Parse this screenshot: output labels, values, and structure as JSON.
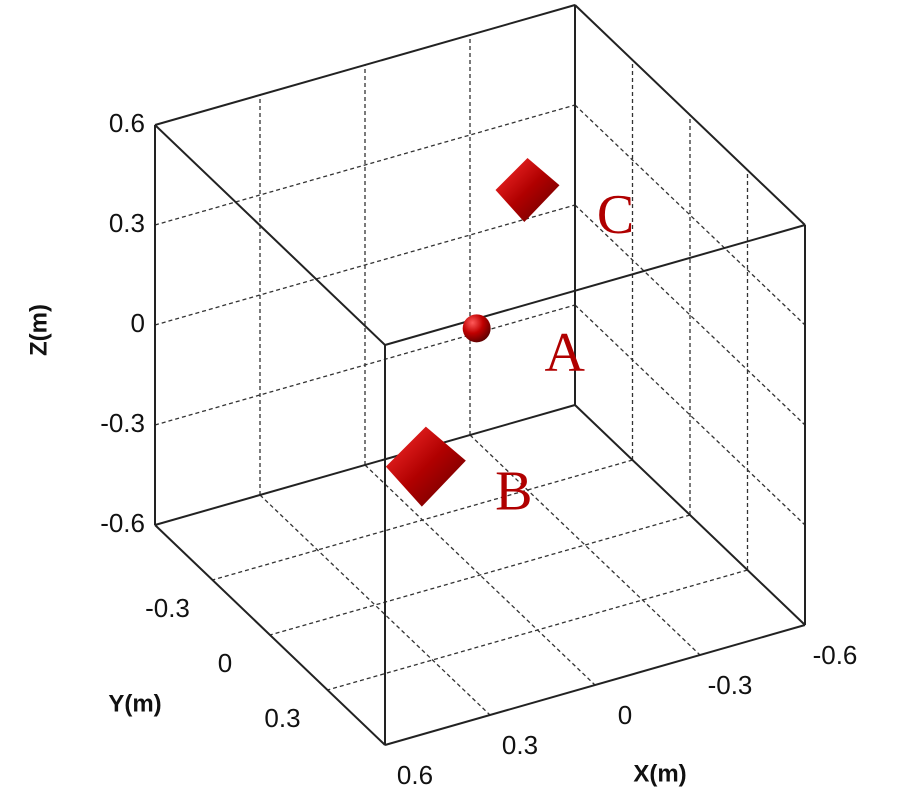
{
  "chart_data": {
    "type": "scatter3d",
    "xlabel": "X(m)",
    "ylabel": "Y(m)",
    "zlabel": "Z(m)",
    "xlim": [
      -0.6,
      0.6
    ],
    "ylim": [
      -0.6,
      0.6
    ],
    "zlim": [
      -0.6,
      0.6
    ],
    "xticks": [
      -0.6,
      -0.3,
      0,
      0.3,
      0.6
    ],
    "yticks": [
      -0.3,
      0,
      0.3
    ],
    "zticks": [
      -0.6,
      -0.3,
      0,
      0.3,
      0.6
    ],
    "grid": true,
    "color": "#b00000",
    "points": [
      {
        "label": "A",
        "x": -0.1,
        "y": -0.2,
        "z": 0,
        "marker": "sphere"
      },
      {
        "label": "B",
        "x": 0.1,
        "y": -0.1,
        "z": -0.3,
        "marker": "cube"
      },
      {
        "label": "C",
        "x": -0.3,
        "y": -0.3,
        "z": 0.3,
        "marker": "cube"
      }
    ]
  }
}
